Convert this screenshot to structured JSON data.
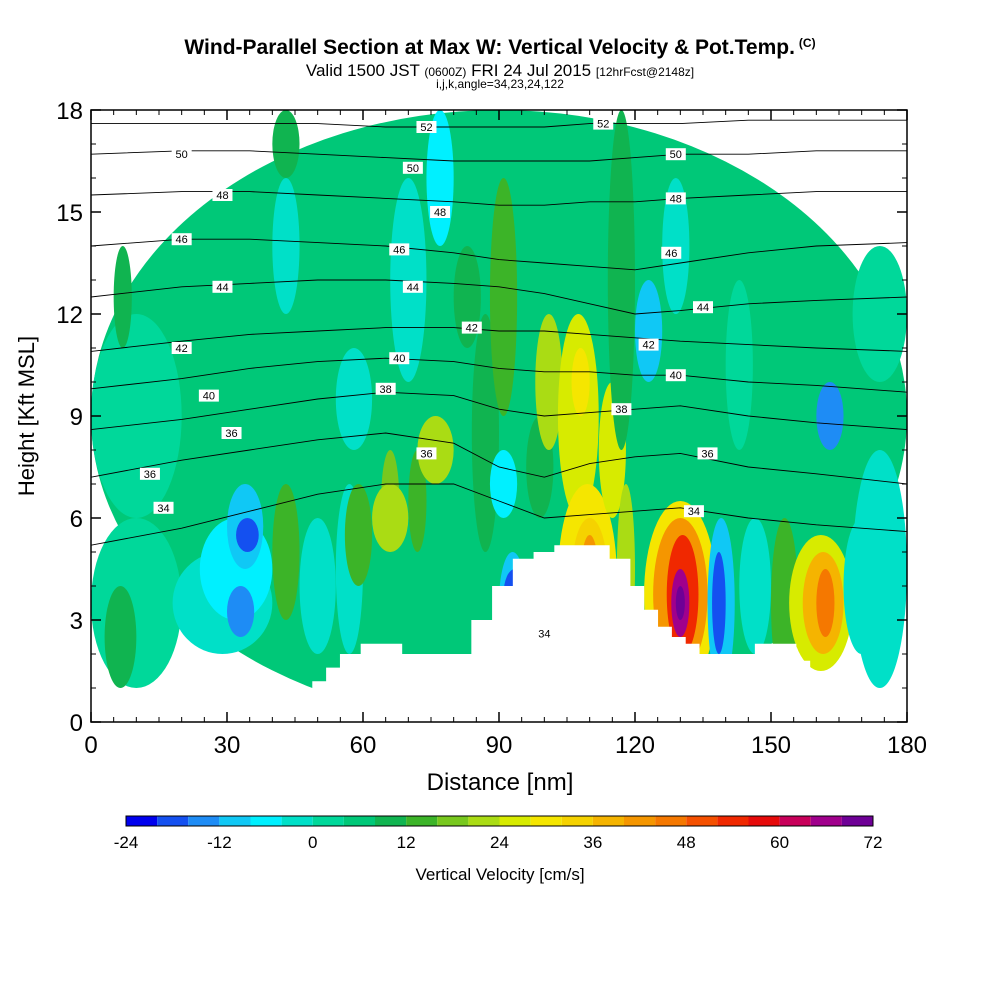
{
  "chart_data": {
    "type": "heatmap",
    "title": "Wind-Parallel Section at Max W: Vertical Velocity & Pot.Temp.",
    "title_mark": "(C)",
    "subtitle_main": "Valid 1500 JST",
    "subtitle_utc": "(0600Z)",
    "subtitle_date": "FRI 24 Jul 2015",
    "subtitle_fcst": "[12hrFcst@2148z]",
    "grid_info": "i,j,k,angle=34,23,24,122",
    "xlabel": "Distance [nm]",
    "ylabel": "Height [Kft MSL]",
    "xlim": [
      0,
      180
    ],
    "ylim": [
      0,
      18
    ],
    "xticks": [
      "0",
      "30",
      "60",
      "90",
      "120",
      "150",
      "180"
    ],
    "yticks": [
      "0",
      "3",
      "6",
      "9",
      "12",
      "15",
      "18"
    ],
    "colorbar": {
      "label": "Vertical Velocity [cm/s]",
      "ticks": [
        "-24",
        "-12",
        "0",
        "12",
        "24",
        "36",
        "48",
        "60",
        "72"
      ],
      "levels": [
        -24,
        -20,
        -16,
        -12,
        -8,
        -4,
        0,
        4,
        8,
        12,
        16,
        20,
        24,
        28,
        32,
        36,
        40,
        44,
        48,
        52,
        56,
        60,
        64,
        68,
        72
      ],
      "colors": [
        "#0000ee",
        "#1450f0",
        "#1e8cf5",
        "#10c8f5",
        "#00f0ff",
        "#00e0c8",
        "#00d89a",
        "#00c878",
        "#10b450",
        "#3cb428",
        "#78c81e",
        "#aadc14",
        "#d7eb00",
        "#f5e600",
        "#f5d200",
        "#f5b400",
        "#f59600",
        "#f57800",
        "#f55000",
        "#f02800",
        "#e60a0a",
        "#c8005a",
        "#a0008c",
        "#6e0096"
      ]
    },
    "cells": [
      {
        "x": [
          0,
          180
        ],
        "y": [
          0,
          18
        ],
        "w": 6
      },
      {
        "x": [
          0,
          20
        ],
        "y": [
          1,
          6
        ],
        "w": 2
      },
      {
        "x": [
          0,
          20
        ],
        "y": [
          6,
          12
        ],
        "w": 3
      },
      {
        "x": [
          3,
          10
        ],
        "y": [
          1,
          4
        ],
        "w": 10
      },
      {
        "x": [
          5,
          9
        ],
        "y": [
          11,
          14
        ],
        "w": 10
      },
      {
        "x": [
          18,
          40
        ],
        "y": [
          2,
          5
        ],
        "w": -2
      },
      {
        "x": [
          24,
          40
        ],
        "y": [
          3,
          6
        ],
        "w": -5
      },
      {
        "x": [
          30,
          38
        ],
        "y": [
          4.5,
          7
        ],
        "w": -11
      },
      {
        "x": [
          32,
          37
        ],
        "y": [
          5,
          6
        ],
        "w": -17
      },
      {
        "x": [
          30,
          36
        ],
        "y": [
          2.5,
          4
        ],
        "w": -13
      },
      {
        "x": [
          40,
          46
        ],
        "y": [
          3,
          7
        ],
        "w": 14
      },
      {
        "x": [
          46,
          54
        ],
        "y": [
          2,
          6
        ],
        "w": -3
      },
      {
        "x": [
          54,
          60
        ],
        "y": [
          2,
          7
        ],
        "w": -3
      },
      {
        "x": [
          56,
          62
        ],
        "y": [
          4,
          7
        ],
        "w": 12
      },
      {
        "x": [
          64,
          68
        ],
        "y": [
          5,
          8
        ],
        "w": 16
      },
      {
        "x": [
          62,
          70
        ],
        "y": [
          5,
          7
        ],
        "w": 20
      },
      {
        "x": [
          70,
          74
        ],
        "y": [
          5,
          8
        ],
        "w": 12
      },
      {
        "x": [
          72,
          80
        ],
        "y": [
          7,
          9
        ],
        "w": 22
      },
      {
        "x": [
          40,
          46
        ],
        "y": [
          12,
          16
        ],
        "w": -4
      },
      {
        "x": [
          40,
          46
        ],
        "y": [
          16,
          18
        ],
        "w": 10
      },
      {
        "x": [
          54,
          62
        ],
        "y": [
          8,
          11
        ],
        "w": -3
      },
      {
        "x": [
          66,
          74
        ],
        "y": [
          10,
          16
        ],
        "w": -3
      },
      {
        "x": [
          74,
          80
        ],
        "y": [
          14,
          18
        ],
        "w": -8
      },
      {
        "x": [
          80,
          86
        ],
        "y": [
          11,
          14
        ],
        "w": 10
      },
      {
        "x": [
          84,
          90
        ],
        "y": [
          5,
          12
        ],
        "w": 10
      },
      {
        "x": [
          88,
          94
        ],
        "y": [
          9,
          16
        ],
        "w": 14
      },
      {
        "x": [
          88,
          94
        ],
        "y": [
          6,
          8
        ],
        "w": -5
      },
      {
        "x": [
          90,
          96
        ],
        "y": [
          2,
          5
        ],
        "w": -10
      },
      {
        "x": [
          91,
          96
        ],
        "y": [
          3,
          4.5
        ],
        "w": -18
      },
      {
        "x": [
          96,
          102
        ],
        "y": [
          6,
          9
        ],
        "w": 8
      },
      {
        "x": [
          98,
          104
        ],
        "y": [
          8,
          12
        ],
        "w": 22
      },
      {
        "x": [
          100,
          104
        ],
        "y": [
          1,
          4
        ],
        "w": 22
      },
      {
        "x": [
          103,
          112
        ],
        "y": [
          6,
          12
        ],
        "w": 26
      },
      {
        "x": [
          106,
          110
        ],
        "y": [
          9,
          11
        ],
        "w": 30
      },
      {
        "x": [
          103,
          116
        ],
        "y": [
          1.5,
          7
        ],
        "w": 28
      },
      {
        "x": [
          106,
          114
        ],
        "y": [
          2.5,
          6
        ],
        "w": 34
      },
      {
        "x": [
          108,
          112
        ],
        "y": [
          3,
          5.5
        ],
        "w": 42
      },
      {
        "x": [
          112,
          118
        ],
        "y": [
          6,
          10
        ],
        "w": 26
      },
      {
        "x": [
          114,
          120
        ],
        "y": [
          8,
          18
        ],
        "w": 10
      },
      {
        "x": [
          116,
          120
        ],
        "y": [
          2,
          7
        ],
        "w": 20
      },
      {
        "x": [
          120,
          126
        ],
        "y": [
          10,
          13
        ],
        "w": -12
      },
      {
        "x": [
          126,
          132
        ],
        "y": [
          12,
          16
        ],
        "w": -4
      },
      {
        "x": [
          122,
          138
        ],
        "y": [
          1,
          6.5
        ],
        "w": 28
      },
      {
        "x": [
          124,
          136
        ],
        "y": [
          1.5,
          6
        ],
        "w": 40
      },
      {
        "x": [
          127,
          134
        ],
        "y": [
          2,
          5.5
        ],
        "w": 54
      },
      {
        "x": [
          128,
          132
        ],
        "y": [
          2.5,
          4.5
        ],
        "w": 66
      },
      {
        "x": [
          129,
          131
        ],
        "y": [
          3,
          4
        ],
        "w": 72
      },
      {
        "x": [
          136,
          142
        ],
        "y": [
          1,
          6
        ],
        "w": -12
      },
      {
        "x": [
          137,
          140
        ],
        "y": [
          2,
          5
        ],
        "w": -20
      },
      {
        "x": [
          140,
          146
        ],
        "y": [
          8,
          13
        ],
        "w": 2
      },
      {
        "x": [
          143,
          150
        ],
        "y": [
          2,
          6
        ],
        "w": -4
      },
      {
        "x": [
          150,
          156
        ],
        "y": [
          1,
          6
        ],
        "w": 14
      },
      {
        "x": [
          154,
          168
        ],
        "y": [
          1.5,
          5.5
        ],
        "w": 24
      },
      {
        "x": [
          157,
          166
        ],
        "y": [
          2,
          5
        ],
        "w": 36
      },
      {
        "x": [
          160,
          164
        ],
        "y": [
          2.5,
          4.5
        ],
        "w": 44
      },
      {
        "x": [
          160,
          166
        ],
        "y": [
          8,
          10
        ],
        "w": -14
      },
      {
        "x": [
          166,
          174
        ],
        "y": [
          2,
          6
        ],
        "w": -3
      },
      {
        "x": [
          168,
          180
        ],
        "y": [
          10,
          14
        ],
        "w": 3
      },
      {
        "x": [
          168,
          180
        ],
        "y": [
          1,
          8
        ],
        "w": -2
      }
    ],
    "terrain_top_kft": [
      0.0,
      0.0,
      0.0,
      0.0,
      0.0,
      0.0,
      0.0,
      0.0,
      0.0,
      0.0,
      0.0,
      0.0,
      0.0,
      0.0,
      0.0,
      0.0,
      0.0,
      0.0,
      0.0,
      0.0,
      0.0,
      0.0,
      0.0,
      0.0,
      0.0,
      0.0,
      0.3,
      0.3,
      0.6,
      0.6,
      0.9,
      0.9,
      1.2,
      1.2,
      1.6,
      1.6,
      2.0,
      2.0,
      2.0,
      2.3,
      2.3,
      2.3,
      2.3,
      2.3,
      2.3,
      2.0,
      2.0,
      2.0,
      2.0,
      2.0,
      2.0,
      2.0,
      2.0,
      2.0,
      2.0,
      3.0,
      3.0,
      3.0,
      4.0,
      4.0,
      4.0,
      4.8,
      4.8,
      4.8,
      5.0,
      5.0,
      5.0,
      5.2,
      5.2,
      5.2,
      5.2,
      5.2,
      5.2,
      5.2,
      5.2,
      4.8,
      4.8,
      4.8,
      4.0,
      4.0,
      3.3,
      3.3,
      2.8,
      2.8,
      2.5,
      2.5,
      2.3,
      2.3,
      2.0,
      2.0,
      2.0,
      2.0,
      2.0,
      2.0,
      2.0,
      2.0,
      2.3,
      2.3,
      2.3,
      2.3,
      2.3,
      2.3,
      1.8,
      1.8,
      1.4,
      1.4,
      1.0,
      1.0,
      0.7,
      0.7,
      0.7,
      0.7,
      0.7,
      0.7,
      0.7,
      0.4,
      0.4,
      0.4,
      0.0
    ],
    "theta_lines": [
      {
        "value": 34,
        "x": [
          0,
          20,
          35,
          50,
          65,
          80,
          90,
          100,
          110,
          120,
          130,
          145,
          160,
          180
        ],
        "y": [
          5.2,
          5.7,
          6.2,
          6.7,
          7.0,
          7.0,
          6.5,
          6.0,
          6.1,
          6.2,
          6.3,
          6.0,
          5.8,
          5.6
        ]
      },
      {
        "value": 36,
        "x": [
          0,
          20,
          35,
          50,
          65,
          80,
          90,
          100,
          110,
          120,
          130,
          145,
          160,
          180
        ],
        "y": [
          7.2,
          7.7,
          8.0,
          8.3,
          8.5,
          8.2,
          7.5,
          7.2,
          7.6,
          7.8,
          7.9,
          7.5,
          7.3,
          7.0
        ]
      },
      {
        "value": 38,
        "x": [
          0,
          20,
          35,
          50,
          65,
          80,
          90,
          100,
          110,
          120,
          130,
          145,
          160,
          180
        ],
        "y": [
          8.6,
          8.9,
          9.2,
          9.5,
          9.7,
          9.6,
          9.2,
          9.0,
          9.1,
          9.2,
          9.3,
          9.0,
          8.8,
          8.6
        ]
      },
      {
        "value": 40,
        "x": [
          0,
          20,
          35,
          50,
          65,
          80,
          90,
          100,
          110,
          120,
          130,
          145,
          160,
          180
        ],
        "y": [
          9.8,
          10.1,
          10.4,
          10.6,
          10.7,
          10.6,
          10.4,
          10.3,
          10.3,
          10.2,
          10.2,
          10.0,
          9.9,
          9.7
        ]
      },
      {
        "value": 42,
        "x": [
          0,
          20,
          35,
          50,
          65,
          80,
          90,
          100,
          110,
          120,
          130,
          145,
          160,
          180
        ],
        "y": [
          10.9,
          11.2,
          11.4,
          11.5,
          11.6,
          11.6,
          11.5,
          11.5,
          11.4,
          11.3,
          11.2,
          11.1,
          11.0,
          10.9
        ]
      },
      {
        "value": 44,
        "x": [
          0,
          20,
          35,
          50,
          65,
          80,
          90,
          100,
          110,
          120,
          130,
          145,
          160,
          180
        ],
        "y": [
          12.5,
          12.8,
          12.9,
          13.0,
          13.0,
          12.9,
          12.8,
          12.6,
          12.3,
          12.0,
          12.1,
          12.3,
          12.4,
          12.5
        ]
      },
      {
        "value": 46,
        "x": [
          0,
          20,
          35,
          50,
          65,
          80,
          90,
          100,
          110,
          120,
          130,
          145,
          160,
          180
        ],
        "y": [
          14.0,
          14.2,
          14.2,
          14.1,
          14.0,
          13.8,
          13.6,
          13.5,
          13.4,
          13.3,
          13.5,
          13.8,
          14.0,
          14.1
        ]
      },
      {
        "value": 48,
        "x": [
          0,
          20,
          35,
          50,
          65,
          80,
          90,
          100,
          110,
          120,
          130,
          145,
          160,
          180
        ],
        "y": [
          15.5,
          15.6,
          15.6,
          15.5,
          15.4,
          15.3,
          15.2,
          15.2,
          15.3,
          15.3,
          15.4,
          15.5,
          15.6,
          15.6
        ]
      },
      {
        "value": 50,
        "x": [
          0,
          20,
          35,
          50,
          65,
          80,
          90,
          100,
          110,
          120,
          130,
          145,
          160,
          180
        ],
        "y": [
          16.7,
          16.8,
          16.8,
          16.7,
          16.6,
          16.5,
          16.5,
          16.5,
          16.5,
          16.6,
          16.7,
          16.7,
          16.8,
          16.8
        ]
      },
      {
        "value": 52,
        "x": [
          0,
          20,
          35,
          50,
          65,
          80,
          90,
          100,
          110,
          120,
          130,
          145,
          160,
          180
        ],
        "y": [
          17.6,
          17.6,
          17.6,
          17.6,
          17.5,
          17.5,
          17.5,
          17.5,
          17.6,
          17.6,
          17.6,
          17.7,
          17.7,
          17.7
        ]
      }
    ],
    "theta_labels": [
      {
        "text": "34",
        "x": 16,
        "y": 6.3
      },
      {
        "text": "36",
        "x": 13,
        "y": 7.3
      },
      {
        "text": "36",
        "x": 31,
        "y": 8.5
      },
      {
        "text": "38",
        "x": 65,
        "y": 9.8
      },
      {
        "text": "36",
        "x": 74,
        "y": 7.9
      },
      {
        "text": "40",
        "x": 26,
        "y": 9.6
      },
      {
        "text": "40",
        "x": 68,
        "y": 10.7
      },
      {
        "text": "42",
        "x": 20,
        "y": 11.0
      },
      {
        "text": "42",
        "x": 84,
        "y": 11.6
      },
      {
        "text": "44",
        "x": 29,
        "y": 12.8
      },
      {
        "text": "44",
        "x": 71,
        "y": 12.8
      },
      {
        "text": "46",
        "x": 20,
        "y": 14.2
      },
      {
        "text": "46",
        "x": 68,
        "y": 13.9
      },
      {
        "text": "48",
        "x": 29,
        "y": 15.5
      },
      {
        "text": "48",
        "x": 77,
        "y": 15.0
      },
      {
        "text": "50",
        "x": 20,
        "y": 16.7
      },
      {
        "text": "50",
        "x": 71,
        "y": 16.3
      },
      {
        "text": "52",
        "x": 74,
        "y": 17.5
      },
      {
        "text": "52",
        "x": 113,
        "y": 17.6
      },
      {
        "text": "50",
        "x": 129,
        "y": 16.7
      },
      {
        "text": "48",
        "x": 129,
        "y": 15.4
      },
      {
        "text": "46",
        "x": 128,
        "y": 13.8
      },
      {
        "text": "44",
        "x": 135,
        "y": 12.2
      },
      {
        "text": "42",
        "x": 123,
        "y": 11.1
      },
      {
        "text": "40",
        "x": 129,
        "y": 10.2
      },
      {
        "text": "38",
        "x": 117,
        "y": 9.2
      },
      {
        "text": "36",
        "x": 136,
        "y": 7.9
      },
      {
        "text": "34",
        "x": 133,
        "y": 6.2
      },
      {
        "text": "34",
        "x": 100,
        "y": 2.6
      }
    ]
  }
}
